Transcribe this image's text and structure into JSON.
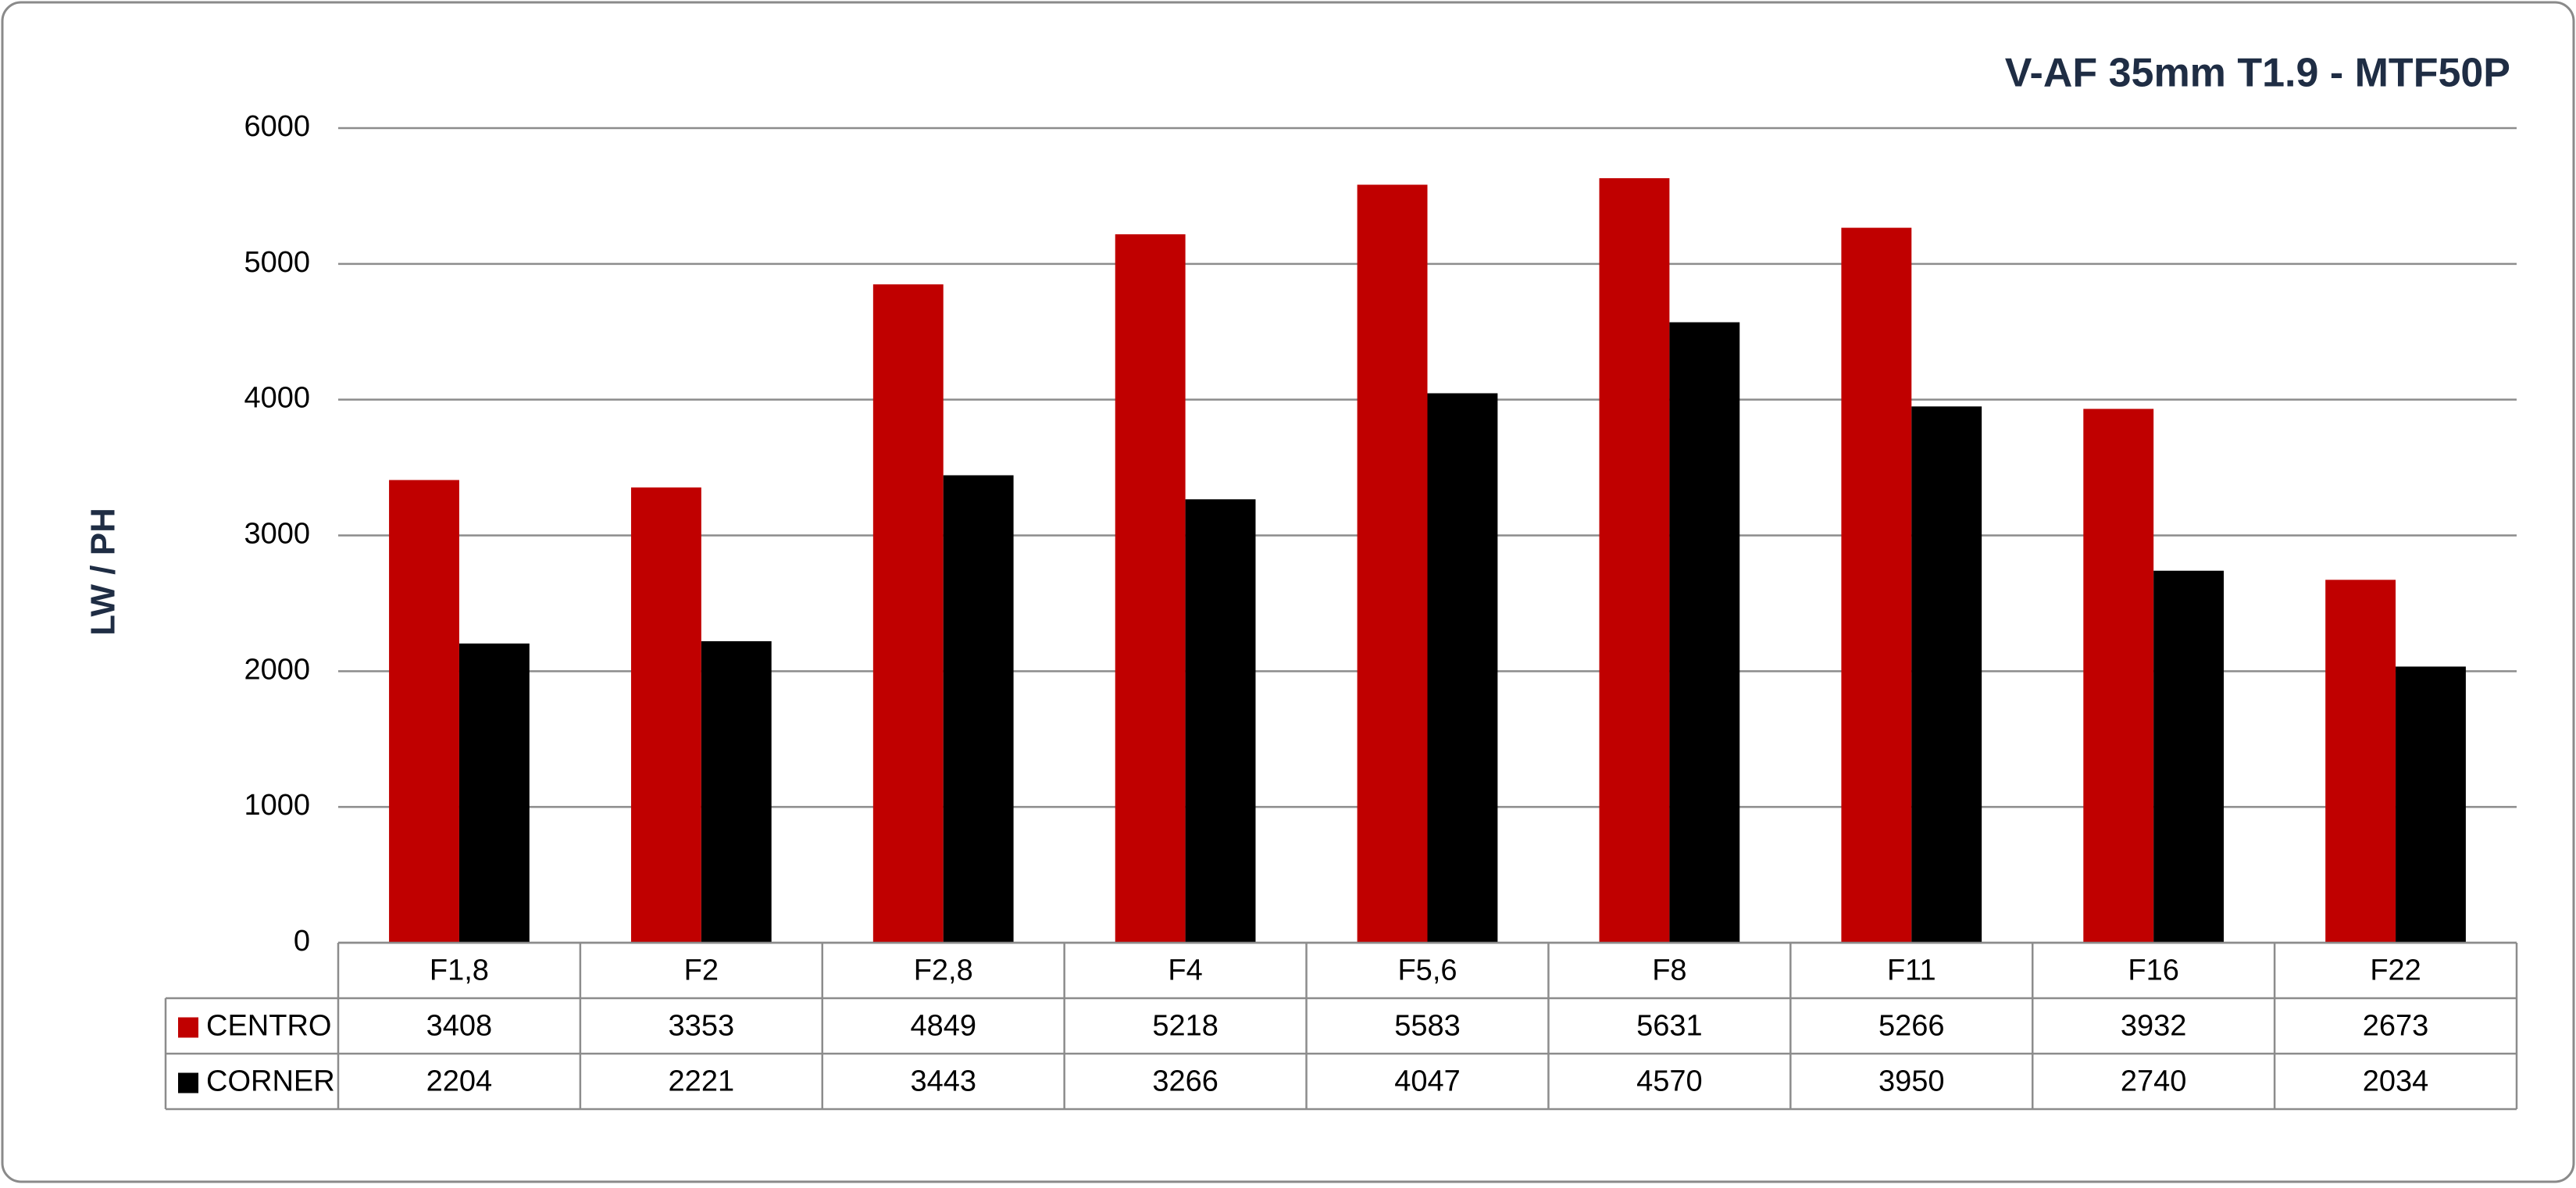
{
  "chart_data": {
    "type": "bar",
    "title": "V-AF 35mm T1.9 - MTF50P",
    "y_label": "LW / PH",
    "categories": [
      "F1,8",
      "F2",
      "F2,8",
      "F4",
      "F5,6",
      "F8",
      "F11",
      "F16",
      "F22"
    ],
    "series": [
      {
        "name": "CENTRO",
        "color": "#c00000",
        "values": [
          3408,
          3353,
          4849,
          5218,
          5583,
          5631,
          5266,
          3932,
          2673
        ]
      },
      {
        "name": "CORNER",
        "color": "#000000",
        "values": [
          2204,
          2221,
          3443,
          3266,
          4047,
          4570,
          3950,
          2740,
          2034
        ]
      }
    ],
    "ylim": [
      0,
      6000
    ],
    "yticks": [
      0,
      1000,
      2000,
      3000,
      4000,
      5000,
      6000
    ],
    "grid": true,
    "data_table": true
  }
}
